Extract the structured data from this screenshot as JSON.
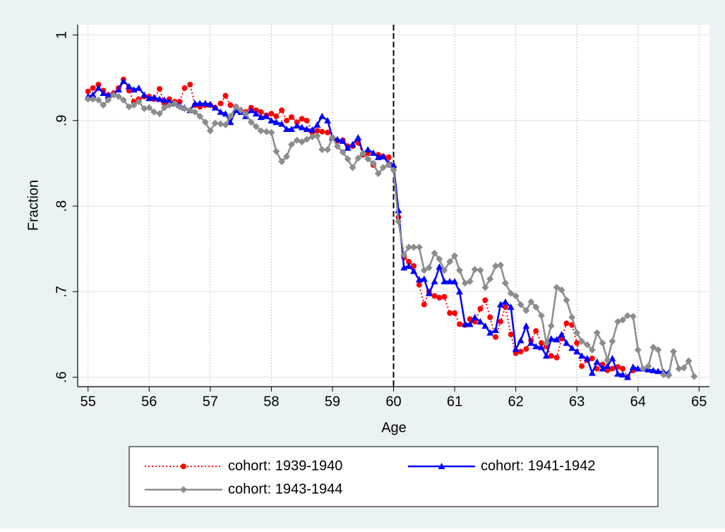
{
  "chart_data": {
    "type": "line",
    "x_label": "Age",
    "y_label": "Fraction",
    "xlim": [
      54.83,
      65.17
    ],
    "ylim": [
      0.589,
      1.012
    ],
    "xticks": [
      55,
      56,
      57,
      58,
      59,
      60,
      61,
      62,
      63,
      64,
      65
    ],
    "yticks": [
      {
        "value": 0.6,
        "label": ".6"
      },
      {
        "value": 0.7,
        "label": ".7"
      },
      {
        "value": 0.8,
        "label": ".8"
      },
      {
        "value": 0.9,
        "label": ".9"
      },
      1
    ],
    "grid": true,
    "xline": 60,
    "x": [
      55,
      55.08,
      55.17,
      55.25,
      55.33,
      55.42,
      55.5,
      55.58,
      55.67,
      55.75,
      55.83,
      55.92,
      56,
      56.08,
      56.17,
      56.25,
      56.33,
      56.42,
      56.5,
      56.58,
      56.67,
      56.75,
      56.83,
      56.92,
      57,
      57.08,
      57.17,
      57.25,
      57.33,
      57.42,
      57.5,
      57.58,
      57.67,
      57.75,
      57.83,
      57.92,
      58,
      58.08,
      58.17,
      58.25,
      58.33,
      58.42,
      58.5,
      58.58,
      58.67,
      58.75,
      58.83,
      58.92,
      59,
      59.08,
      59.17,
      59.25,
      59.33,
      59.42,
      59.5,
      59.58,
      59.67,
      59.75,
      59.83,
      59.92,
      60,
      60.08,
      60.17,
      60.25,
      60.33,
      60.42,
      60.5,
      60.58,
      60.67,
      60.75,
      60.83,
      60.92,
      61,
      61.08,
      61.17,
      61.25,
      61.33,
      61.42,
      61.5,
      61.58,
      61.67,
      61.75,
      61.83,
      61.92,
      62,
      62.08,
      62.17,
      62.25,
      62.33,
      62.42,
      62.5,
      62.58,
      62.67,
      62.75,
      62.83,
      62.92,
      63,
      63.08,
      63.17,
      63.25,
      63.33,
      63.42,
      63.5,
      63.58,
      63.67,
      63.75,
      63.83,
      63.92,
      64,
      64.08,
      64.17,
      64.25,
      64.33,
      64.42,
      64.5,
      64.58,
      64.67,
      64.75,
      64.83,
      64.92
    ],
    "series": [
      {
        "name": "cohort: 1939-1940",
        "color": "#ff0000",
        "marker": "circle",
        "dash": "dotted",
        "values": [
          0.934,
          0.938,
          0.942,
          0.935,
          0.93,
          0.932,
          0.938,
          0.948,
          0.935,
          0.922,
          0.925,
          0.928,
          0.928,
          0.925,
          0.937,
          0.92,
          0.925,
          0.922,
          0.922,
          0.938,
          0.942,
          0.918,
          0.916,
          0.918,
          0.918,
          0.915,
          0.92,
          0.929,
          0.918,
          0.916,
          0.912,
          0.91,
          0.915,
          0.912,
          0.91,
          0.906,
          0.908,
          0.905,
          0.912,
          0.9,
          0.904,
          0.898,
          0.902,
          0.9,
          0.886,
          0.888,
          0.887,
          0.886,
          0.88,
          0.876,
          0.877,
          0.87,
          0.87,
          0.874,
          0.86,
          0.862,
          0.848,
          0.86,
          0.858,
          0.857,
          0.845,
          0.787,
          0.74,
          0.735,
          0.73,
          0.708,
          0.685,
          0.7,
          0.695,
          0.693,
          0.694,
          0.675,
          0.675,
          0.662,
          0.661,
          0.668,
          0.665,
          0.68,
          0.69,
          0.67,
          0.647,
          0.665,
          0.682,
          0.65,
          0.628,
          0.63,
          0.633,
          0.643,
          0.654,
          0.64,
          0.636,
          0.625,
          0.623,
          0.645,
          0.663,
          0.661,
          0.64,
          0.613,
          0.62,
          0.622,
          0.61,
          0.615,
          0.608,
          0.61,
          0.612,
          0.61,
          0.6,
          0.608,
          null,
          null,
          null,
          null,
          null,
          null,
          null,
          null,
          null,
          null,
          null,
          null
        ]
      },
      {
        "name": "cohort: 1941-1942",
        "color": "#0000ff",
        "marker": "triangle",
        "dash": "solid",
        "values": [
          0.928,
          0.93,
          0.938,
          0.932,
          0.929,
          0.931,
          0.936,
          0.946,
          0.94,
          0.936,
          0.938,
          0.93,
          0.926,
          0.927,
          0.925,
          0.924,
          0.922,
          0.92,
          0.918,
          0.915,
          0.912,
          0.92,
          0.92,
          0.92,
          0.919,
          0.915,
          0.91,
          0.908,
          0.898,
          0.912,
          0.91,
          0.905,
          0.912,
          0.908,
          0.904,
          0.905,
          0.9,
          0.898,
          0.896,
          0.89,
          0.89,
          0.894,
          0.892,
          0.89,
          0.889,
          0.895,
          0.905,
          0.9,
          0.88,
          0.878,
          0.876,
          0.868,
          0.872,
          0.88,
          0.862,
          0.866,
          0.862,
          0.857,
          0.858,
          0.85,
          0.848,
          0.795,
          0.728,
          0.73,
          0.724,
          0.714,
          0.715,
          0.698,
          0.712,
          0.729,
          0.712,
          0.712,
          0.712,
          0.7,
          0.662,
          0.662,
          0.67,
          0.665,
          0.66,
          0.652,
          0.655,
          0.685,
          0.688,
          0.682,
          0.633,
          0.643,
          0.66,
          0.64,
          0.636,
          0.635,
          0.625,
          0.645,
          0.644,
          0.65,
          0.64,
          0.634,
          0.63,
          0.625,
          0.622,
          0.605,
          0.618,
          0.61,
          0.613,
          0.622,
          0.604,
          0.603,
          0.6,
          0.612,
          0.61,
          0.61,
          0.609,
          0.608,
          0.607,
          0.606,
          0.605,
          null,
          null,
          null,
          null,
          null
        ]
      },
      {
        "name": "cohort: 1943-1944",
        "color": "#8c8c8c",
        "marker": "diamond",
        "dash": "solid",
        "values": [
          0.925,
          0.925,
          0.924,
          0.918,
          0.924,
          0.93,
          0.928,
          0.924,
          0.916,
          0.918,
          0.922,
          0.914,
          0.915,
          0.91,
          0.908,
          0.915,
          0.918,
          0.92,
          0.916,
          0.914,
          0.912,
          0.91,
          0.905,
          0.898,
          0.888,
          0.897,
          0.896,
          0.895,
          0.905,
          0.916,
          0.912,
          0.908,
          0.898,
          0.893,
          0.888,
          0.887,
          0.886,
          0.864,
          0.852,
          0.858,
          0.872,
          0.877,
          0.875,
          0.878,
          0.881,
          0.882,
          0.866,
          0.866,
          0.88,
          0.87,
          0.863,
          0.855,
          0.845,
          0.856,
          0.862,
          0.855,
          0.85,
          0.838,
          0.845,
          0.848,
          0.842,
          0.782,
          0.743,
          0.752,
          0.752,
          0.752,
          0.725,
          0.728,
          0.745,
          0.738,
          0.725,
          0.735,
          0.742,
          0.725,
          0.71,
          0.712,
          0.726,
          0.725,
          0.705,
          0.715,
          0.73,
          0.731,
          0.71,
          0.698,
          0.695,
          0.685,
          0.678,
          0.688,
          0.682,
          0.672,
          0.64,
          0.66,
          0.705,
          0.702,
          0.69,
          0.67,
          0.652,
          0.642,
          0.638,
          0.632,
          0.652,
          0.64,
          0.62,
          0.642,
          0.665,
          0.667,
          0.672,
          0.671,
          0.632,
          0.61,
          0.613,
          0.635,
          0.632,
          0.603,
          0.602,
          0.63,
          0.61,
          0.611,
          0.619,
          0.601
        ]
      }
    ]
  }
}
